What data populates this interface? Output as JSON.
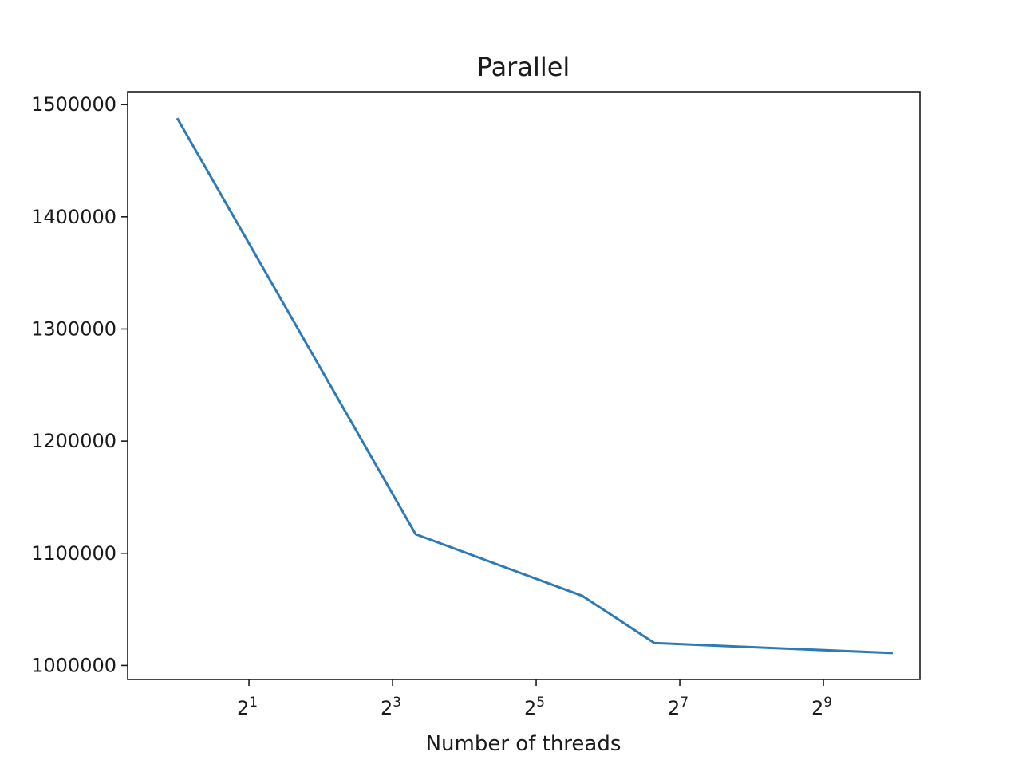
{
  "chart_data": {
    "type": "line",
    "title": "Parallel",
    "xlabel": "Number of threads",
    "ylabel": "",
    "x_scale": "log2",
    "x": [
      1,
      10,
      50,
      100,
      1000
    ],
    "series": [
      {
        "values": [
          1488000,
          1117000,
          1062000,
          1020000,
          1011000
        ]
      }
    ],
    "xlim": [
      0.62,
      1300
    ],
    "ylim": [
      987500,
      1511500
    ],
    "xticks": [
      {
        "value": 2,
        "base": "2",
        "exp": "1"
      },
      {
        "value": 8,
        "base": "2",
        "exp": "3"
      },
      {
        "value": 32,
        "base": "2",
        "exp": "5"
      },
      {
        "value": 128,
        "base": "2",
        "exp": "7"
      },
      {
        "value": 512,
        "base": "2",
        "exp": "9"
      }
    ],
    "yticks": [
      {
        "value": 1000000,
        "label": "1000000"
      },
      {
        "value": 1100000,
        "label": "1100000"
      },
      {
        "value": 1200000,
        "label": "1200000"
      },
      {
        "value": 1300000,
        "label": "1300000"
      },
      {
        "value": 1400000,
        "label": "1400000"
      },
      {
        "value": 1500000,
        "label": "1500000"
      }
    ],
    "grid": false,
    "line_color": "#2e7ab6",
    "axis_color": "#1a1a1a"
  }
}
